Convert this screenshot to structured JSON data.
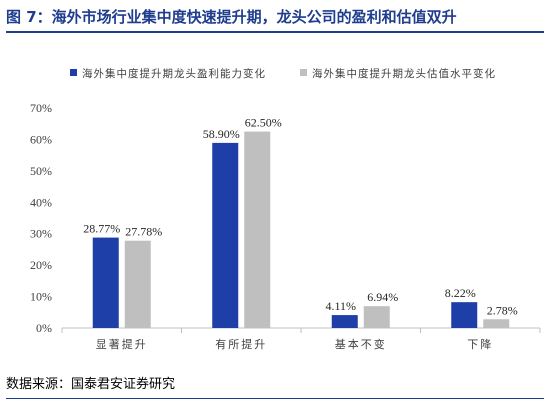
{
  "header": {
    "title": "图 7：海外市场行业集中度快速提升期，龙头公司的盈利和估值双升"
  },
  "footer": {
    "source": "数据来源：国泰君安证券研究"
  },
  "colors": {
    "title": "#1f3d8f",
    "series_1": "#1f3fa8",
    "series_2": "#bfbfbf",
    "axis": "#bfbfbf"
  },
  "chart_data": {
    "type": "bar",
    "categories": [
      "显著提升",
      "有所提升",
      "基本不变",
      "下降"
    ],
    "series": [
      {
        "name": "海外集中度提升期龙头盈利能力变化",
        "values": [
          28.77,
          58.9,
          4.11,
          8.22
        ]
      },
      {
        "name": "海外集中度提升期龙头估值水平变化",
        "values": [
          27.78,
          62.5,
          6.94,
          2.78
        ]
      }
    ],
    "data_labels": [
      [
        "28.77%",
        "58.90%",
        "4.11%",
        "8.22%"
      ],
      [
        "27.78%",
        "62.50%",
        "6.94%",
        "2.78%"
      ]
    ],
    "y_ticks": [
      "0%",
      "10%",
      "20%",
      "30%",
      "40%",
      "50%",
      "60%",
      "70%"
    ],
    "ylim": [
      0,
      70
    ],
    "grid": false,
    "legend_position": "top"
  }
}
